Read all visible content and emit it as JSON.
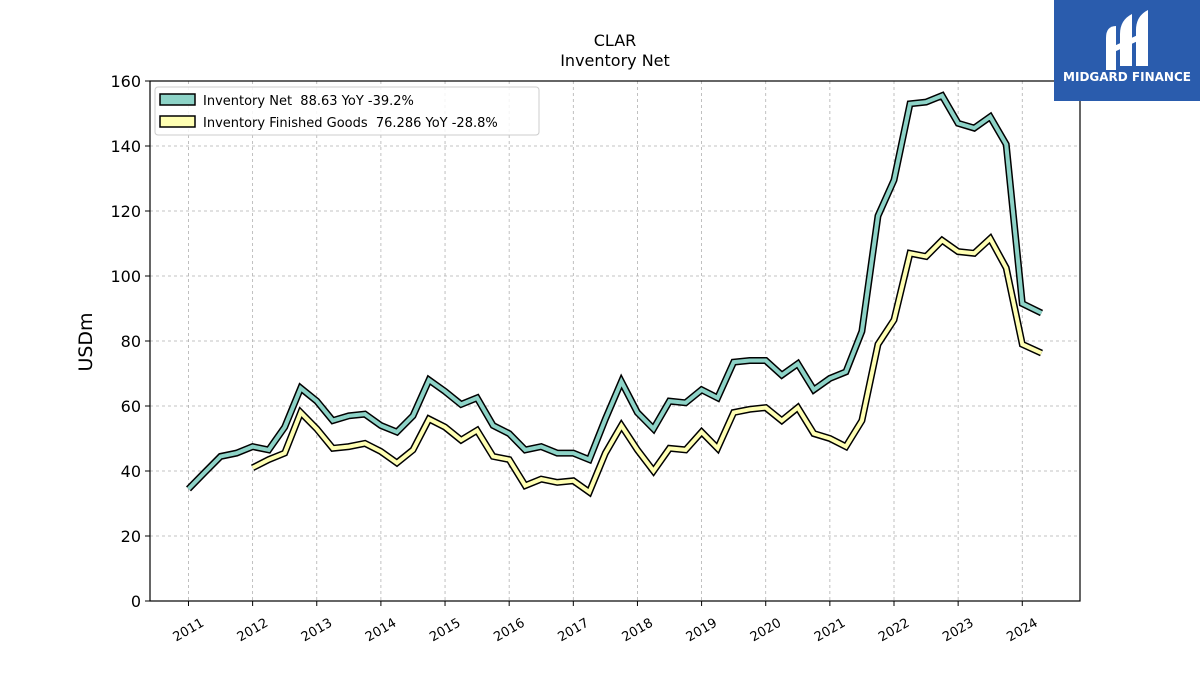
{
  "chart_data": {
    "type": "line",
    "title": "CLAR",
    "subtitle": "Inventory Net",
    "ylabel": "USDm",
    "xlabel": "",
    "xlim": [
      2010.4,
      2024.9
    ],
    "ylim": [
      0,
      160
    ],
    "x_ticks": [
      "2011",
      "2012",
      "2013",
      "2014",
      "2015",
      "2016",
      "2017",
      "2018",
      "2019",
      "2020",
      "2021",
      "2022",
      "2023",
      "2024"
    ],
    "y_ticks": [
      0,
      20,
      40,
      60,
      80,
      100,
      120,
      140,
      160
    ],
    "grid": true,
    "legend_position": "top-left",
    "series": [
      {
        "name": "Inventory Net  88.63 YoY -39.2%",
        "color": "#8dd3c7",
        "x": [
          2011.0,
          2011.25,
          2011.5,
          2011.75,
          2012.0,
          2012.25,
          2012.5,
          2012.75,
          2013.0,
          2013.25,
          2013.5,
          2013.75,
          2014.0,
          2014.25,
          2014.5,
          2014.75,
          2015.0,
          2015.25,
          2015.5,
          2015.75,
          2016.0,
          2016.25,
          2016.5,
          2016.75,
          2017.0,
          2017.25,
          2017.5,
          2017.75,
          2018.0,
          2018.25,
          2018.5,
          2018.75,
          2019.0,
          2019.25,
          2019.5,
          2019.75,
          2020.0,
          2020.25,
          2020.5,
          2020.75,
          2021.0,
          2021.25,
          2021.5,
          2021.75,
          2022.0,
          2022.25,
          2022.5,
          2022.75,
          2023.0,
          2023.25,
          2023.5,
          2023.75,
          2024.0,
          2024.3
        ],
        "values": [
          34.5,
          39.5,
          44.5,
          45.5,
          47.5,
          46.5,
          53.5,
          65.5,
          61.5,
          55.5,
          57.0,
          57.5,
          54.0,
          52.0,
          57.0,
          68.0,
          64.5,
          60.5,
          62.5,
          54.0,
          51.5,
          46.5,
          47.5,
          45.5,
          45.5,
          43.5,
          56.0,
          67.5,
          58.0,
          53.0,
          61.5,
          61.0,
          65.0,
          62.5,
          73.5,
          74.0,
          74.0,
          69.5,
          73.0,
          65.0,
          68.5,
          70.5,
          83.0,
          118.5,
          129.5,
          153.0,
          153.5,
          155.5,
          147.0,
          145.5,
          149.0,
          140.5,
          91.5,
          88.63
        ]
      },
      {
        "name": "Inventory Finished Goods  76.286 YoY -28.8%",
        "color": "#ffffb3",
        "x": [
          2012.0,
          2012.25,
          2012.5,
          2012.75,
          2013.0,
          2013.25,
          2013.5,
          2013.75,
          2014.0,
          2014.25,
          2014.5,
          2014.75,
          2015.0,
          2015.25,
          2015.5,
          2015.75,
          2016.0,
          2016.25,
          2016.5,
          2016.75,
          2017.0,
          2017.25,
          2017.5,
          2017.75,
          2018.0,
          2018.25,
          2018.5,
          2018.75,
          2019.0,
          2019.25,
          2019.5,
          2019.75,
          2020.0,
          2020.25,
          2020.5,
          2020.75,
          2021.0,
          2021.25,
          2021.5,
          2021.75,
          2022.0,
          2022.25,
          2022.5,
          2022.75,
          2023.0,
          2023.25,
          2023.5,
          2023.75,
          2024.0,
          2024.3
        ],
        "values": [
          41.0,
          43.5,
          45.5,
          58.0,
          53.0,
          47.0,
          47.5,
          48.5,
          46.0,
          42.5,
          46.5,
          56.0,
          53.5,
          49.5,
          52.5,
          44.5,
          43.5,
          35.5,
          37.5,
          36.5,
          37.0,
          33.5,
          45.5,
          54.0,
          46.5,
          40.0,
          47.0,
          46.5,
          52.0,
          47.0,
          58.0,
          59.0,
          59.5,
          55.5,
          59.5,
          51.5,
          50.0,
          47.5,
          55.5,
          79.0,
          86.5,
          107.0,
          106.0,
          111.0,
          107.5,
          107.0,
          111.5,
          102.5,
          79.0,
          76.286
        ]
      }
    ]
  },
  "logo": {
    "text": "MIDGARD FINANCE",
    "color": "#2a5cad"
  }
}
